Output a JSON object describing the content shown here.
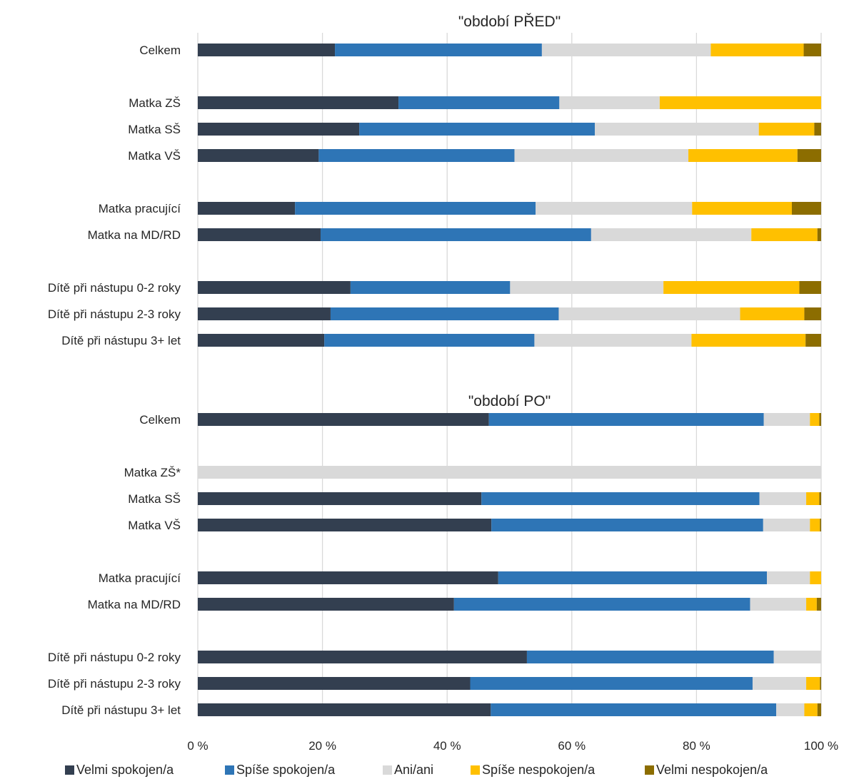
{
  "chart_data": {
    "type": "bar",
    "orientation": "horizontal",
    "stacked": true,
    "xlim": [
      0,
      100
    ],
    "x_ticks": [
      "0 %",
      "20 %",
      "40 %",
      "60 %",
      "80 %",
      "100 %"
    ],
    "grid": true,
    "legend_position": "bottom",
    "series": [
      {
        "name": "Velmi spokojen/a",
        "color": "#333f50"
      },
      {
        "name": "Spíše spokojen/a",
        "color": "#2e75b6"
      },
      {
        "name": "Ani/ani",
        "color": "#d9d9d9"
      },
      {
        "name": "Spíše nespokojen/a",
        "color": "#ffc000"
      },
      {
        "name": "Velmi nespokojen/a",
        "color": "#8c6d00"
      }
    ],
    "panels": [
      {
        "title": "\"období PŘED\"",
        "groups": [
          {
            "categories": [
              {
                "label": "Celkem",
                "values": [
                  22,
                  33.2,
                  27.1,
                  14.9,
                  2.8
                ]
              }
            ]
          },
          {
            "categories": [
              {
                "label": "Matka ZŠ",
                "values": [
                  32.2,
                  25.8,
                  16.1,
                  25.9,
                  0
                ]
              },
              {
                "label": "Matka SŠ",
                "values": [
                  25.9,
                  37.8,
                  26.3,
                  8.9,
                  1.1
                ]
              },
              {
                "label": "Matka VŠ",
                "values": [
                  19.4,
                  31.4,
                  27.9,
                  17.5,
                  3.8
                ]
              }
            ]
          },
          {
            "categories": [
              {
                "label": "Matka pracující",
                "values": [
                  15.6,
                  38.6,
                  25.1,
                  16,
                  4.7
                ]
              },
              {
                "label": "Matka na MD/RD",
                "values": [
                  19.7,
                  43.4,
                  25.7,
                  10.6,
                  0.6
                ]
              }
            ]
          },
          {
            "categories": [
              {
                "label": "Dítě při nástupu 0-2 roky",
                "values": [
                  24.5,
                  25.6,
                  24.6,
                  21.8,
                  3.5
                ]
              },
              {
                "label": "Dítě při nástupu 2-3 roky",
                "values": [
                  21.3,
                  36.6,
                  29.1,
                  10.3,
                  2.7
                ]
              },
              {
                "label": "Dítě při nástupu 3+ let",
                "values": [
                  20.3,
                  33.7,
                  25.2,
                  18.3,
                  2.5
                ]
              }
            ]
          }
        ]
      },
      {
        "title": "\"období PO\"",
        "groups": [
          {
            "categories": [
              {
                "label": "Celkem",
                "values": [
                  46.7,
                  44.1,
                  7.4,
                  1.5,
                  0.3
                ]
              }
            ]
          },
          {
            "categories": [
              {
                "label": "Matka ZŠ*",
                "values": [
                  0,
                  0,
                  100,
                  0,
                  0
                ]
              },
              {
                "label": "Matka SŠ",
                "values": [
                  45.5,
                  44.6,
                  7.5,
                  2.1,
                  0.3
                ]
              },
              {
                "label": "Matka VŠ",
                "values": [
                  47.1,
                  43.6,
                  7.5,
                  1.6,
                  0.2
                ]
              }
            ]
          },
          {
            "categories": [
              {
                "label": "Matka pracující",
                "values": [
                  48.2,
                  43.1,
                  6.9,
                  1.8,
                  0
                ]
              },
              {
                "label": "Matka na MD/RD",
                "values": [
                  41.1,
                  47.5,
                  9,
                  1.7,
                  0.7
                ]
              }
            ]
          },
          {
            "categories": [
              {
                "label": "Dítě při nástupu 0-2 roky",
                "values": [
                  52.8,
                  39.6,
                  7.6,
                  0,
                  0
                ]
              },
              {
                "label": "Dítě při nástupu 2-3 roky",
                "values": [
                  43.7,
                  45.3,
                  8.6,
                  2.2,
                  0.2
                ]
              },
              {
                "label": "Dítě při nástupu 3+ let",
                "values": [
                  47,
                  45.8,
                  4.5,
                  2.1,
                  0.6
                ]
              }
            ]
          }
        ]
      }
    ]
  }
}
